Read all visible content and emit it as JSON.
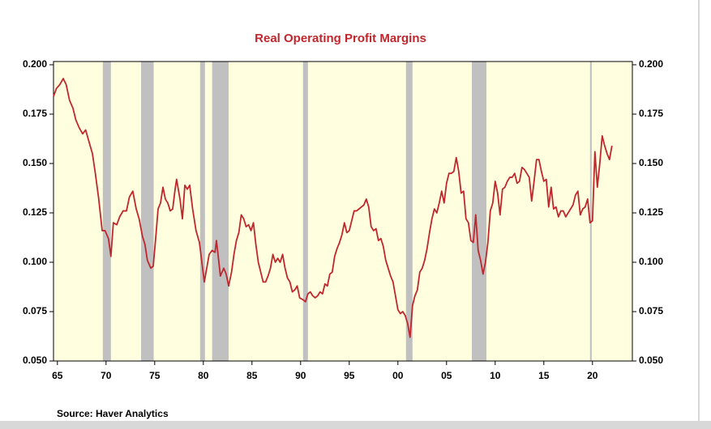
{
  "chart_data": {
    "type": "line",
    "title": "Real Operating Profit Margins",
    "source": "Source:  Haver Analytics",
    "x": [
      1964.6,
      1964.9,
      1965.25,
      1965.6,
      1965.9,
      1966.25,
      1966.6,
      1966.9,
      1967.25,
      1967.6,
      1967.9,
      1968.25,
      1968.6,
      1968.9,
      1969.25,
      1969.6,
      1969.9,
      1970.25,
      1970.5,
      1970.75,
      1971.1,
      1971.4,
      1971.75,
      1972.1,
      1972.4,
      1972.75,
      1973.1,
      1973.4,
      1973.75,
      1974.0,
      1974.25,
      1974.6,
      1974.85,
      1975.1,
      1975.35,
      1975.6,
      1975.85,
      1976.1,
      1976.35,
      1976.6,
      1976.85,
      1977.1,
      1977.25,
      1977.6,
      1977.85,
      1978.1,
      1978.35,
      1978.6,
      1978.9,
      1979.25,
      1979.6,
      1979.85,
      1980.1,
      1980.35,
      1980.6,
      1980.9,
      1981.2,
      1981.35,
      1981.6,
      1981.75,
      1982.1,
      1982.35,
      1982.6,
      1982.9,
      1983.15,
      1983.4,
      1983.65,
      1983.9,
      1984.15,
      1984.4,
      1984.65,
      1984.9,
      1985.15,
      1985.4,
      1985.65,
      1985.9,
      1986.15,
      1986.4,
      1986.65,
      1986.9,
      1987.15,
      1987.4,
      1987.65,
      1987.9,
      1988.15,
      1988.4,
      1988.65,
      1988.9,
      1989.15,
      1989.4,
      1989.65,
      1989.9,
      1990.25,
      1990.5,
      1990.75,
      1991.0,
      1991.25,
      1991.5,
      1991.75,
      1992.0,
      1992.25,
      1992.5,
      1992.75,
      1993.0,
      1993.25,
      1993.5,
      1993.75,
      1994.0,
      1994.25,
      1994.5,
      1994.75,
      1995.0,
      1995.25,
      1995.5,
      1995.75,
      1996.0,
      1996.25,
      1996.5,
      1996.75,
      1997.0,
      1997.25,
      1997.5,
      1997.75,
      1998.0,
      1998.25,
      1998.5,
      1998.75,
      1999.0,
      1999.25,
      1999.5,
      1999.75,
      2000.0,
      2000.25,
      2000.5,
      2000.75,
      2001.0,
      2001.25,
      2001.5,
      2001.75,
      2002.0,
      2002.25,
      2002.5,
      2002.75,
      2003.0,
      2003.25,
      2003.5,
      2003.75,
      2004.0,
      2004.25,
      2004.5,
      2004.75,
      2005.0,
      2005.25,
      2005.5,
      2005.75,
      2006.0,
      2006.25,
      2006.5,
      2006.75,
      2007.0,
      2007.25,
      2007.5,
      2007.75,
      2008.0,
      2008.25,
      2008.5,
      2008.75,
      2009.0,
      2009.25,
      2009.5,
      2009.75,
      2010.0,
      2010.25,
      2010.5,
      2010.75,
      2011.0,
      2011.25,
      2011.5,
      2011.75,
      2012.0,
      2012.25,
      2012.5,
      2012.75,
      2013.0,
      2013.25,
      2013.5,
      2013.75,
      2014.0,
      2014.25,
      2014.5,
      2014.75,
      2015.0,
      2015.25,
      2015.5,
      2015.75,
      2016.0,
      2016.25,
      2016.5,
      2016.75,
      2017.0,
      2017.25,
      2017.5,
      2017.75,
      2018.0,
      2018.25,
      2018.5,
      2018.75,
      2019.0,
      2019.25,
      2019.5,
      2019.75,
      2020.0,
      2020.25,
      2020.5,
      2020.75,
      2021.0,
      2021.25,
      2021.5,
      2021.75,
      2022.0
    ],
    "series": [
      {
        "color": "#c0272d",
        "values": [
          0.184,
          0.188,
          0.19,
          0.193,
          0.19,
          0.182,
          0.178,
          0.172,
          0.168,
          0.165,
          0.167,
          0.161,
          0.155,
          0.145,
          0.132,
          0.116,
          0.116,
          0.112,
          0.103,
          0.12,
          0.119,
          0.123,
          0.126,
          0.126,
          0.133,
          0.136,
          0.127,
          0.122,
          0.113,
          0.109,
          0.101,
          0.097,
          0.098,
          0.112,
          0.127,
          0.13,
          0.138,
          0.132,
          0.13,
          0.126,
          0.127,
          0.137,
          0.142,
          0.132,
          0.122,
          0.139,
          0.137,
          0.139,
          0.127,
          0.116,
          0.11,
          0.1,
          0.09,
          0.097,
          0.104,
          0.106,
          0.105,
          0.111,
          0.1,
          0.093,
          0.097,
          0.094,
          0.088,
          0.095,
          0.104,
          0.111,
          0.115,
          0.124,
          0.122,
          0.118,
          0.119,
          0.116,
          0.12,
          0.109,
          0.1,
          0.095,
          0.09,
          0.09,
          0.093,
          0.097,
          0.104,
          0.1,
          0.102,
          0.1,
          0.104,
          0.097,
          0.092,
          0.09,
          0.085,
          0.086,
          0.088,
          0.082,
          0.081,
          0.08,
          0.084,
          0.085,
          0.083,
          0.082,
          0.083,
          0.085,
          0.084,
          0.089,
          0.088,
          0.094,
          0.095,
          0.103,
          0.107,
          0.11,
          0.114,
          0.12,
          0.115,
          0.116,
          0.121,
          0.126,
          0.126,
          0.127,
          0.128,
          0.129,
          0.132,
          0.128,
          0.118,
          0.116,
          0.117,
          0.111,
          0.112,
          0.108,
          0.101,
          0.097,
          0.093,
          0.09,
          0.083,
          0.076,
          0.074,
          0.075,
          0.073,
          0.069,
          0.062,
          0.078,
          0.083,
          0.086,
          0.095,
          0.097,
          0.101,
          0.107,
          0.115,
          0.122,
          0.127,
          0.125,
          0.13,
          0.136,
          0.13,
          0.14,
          0.145,
          0.145,
          0.146,
          0.153,
          0.146,
          0.135,
          0.136,
          0.122,
          0.12,
          0.111,
          0.11,
          0.124,
          0.106,
          0.101,
          0.094,
          0.1,
          0.11,
          0.126,
          0.13,
          0.141,
          0.135,
          0.124,
          0.137,
          0.138,
          0.141,
          0.143,
          0.143,
          0.145,
          0.14,
          0.141,
          0.148,
          0.147,
          0.145,
          0.143,
          0.131,
          0.141,
          0.152,
          0.152,
          0.146,
          0.141,
          0.142,
          0.128,
          0.138,
          0.127,
          0.128,
          0.123,
          0.126,
          0.126,
          0.123,
          0.125,
          0.127,
          0.129,
          0.134,
          0.136,
          0.124,
          0.127,
          0.128,
          0.132,
          0.12,
          0.121,
          0.156,
          0.138,
          0.15,
          0.164,
          0.159,
          0.155,
          0.152,
          0.159
        ]
      }
    ],
    "shaded_periods": [
      [
        1969.67,
        1970.5
      ],
      [
        1973.6,
        1974.9
      ],
      [
        1979.67,
        1980.17
      ],
      [
        1980.9,
        1982.6
      ],
      [
        1990.25,
        1990.75
      ],
      [
        2000.83,
        2001.5
      ],
      [
        2007.6,
        2009.1
      ],
      [
        2019.75,
        2019.92
      ]
    ],
    "shade_color": "#c0c0c0",
    "background": "#ffffe0",
    "xlim": [
      1964.6,
      2024.1
    ],
    "xticks": [
      {
        "value": 1965,
        "label": "65"
      },
      {
        "value": 1970,
        "label": "70"
      },
      {
        "value": 1975,
        "label": "75"
      },
      {
        "value": 1980,
        "label": "80"
      },
      {
        "value": 1985,
        "label": "85"
      },
      {
        "value": 1990,
        "label": "90"
      },
      {
        "value": 1995,
        "label": "95"
      },
      {
        "value": 2000,
        "label": "00"
      },
      {
        "value": 2005,
        "label": "05"
      },
      {
        "value": 2010,
        "label": "10"
      },
      {
        "value": 2015,
        "label": "15"
      },
      {
        "value": 2020,
        "label": "20"
      }
    ],
    "ylim": [
      0.05,
      0.2
    ],
    "yticks": [
      {
        "value": 0.05,
        "label": "0.050"
      },
      {
        "value": 0.075,
        "label": "0.075"
      },
      {
        "value": 0.1,
        "label": "0.100"
      },
      {
        "value": 0.125,
        "label": "0.125"
      },
      {
        "value": 0.15,
        "label": "0.150"
      },
      {
        "value": 0.175,
        "label": "0.175"
      },
      {
        "value": 0.2,
        "label": "0.200"
      }
    ],
    "y2lim": [
      0.05,
      0.2
    ],
    "y2ticks": [
      {
        "value": 0.05,
        "label": "0.050"
      },
      {
        "value": 0.075,
        "label": "0.075"
      },
      {
        "value": 0.1,
        "label": "0.100"
      },
      {
        "value": 0.125,
        "label": "0.125"
      },
      {
        "value": 0.15,
        "label": "0.150"
      },
      {
        "value": 0.175,
        "label": "0.175"
      },
      {
        "value": 0.2,
        "label": "0.200"
      }
    ]
  }
}
